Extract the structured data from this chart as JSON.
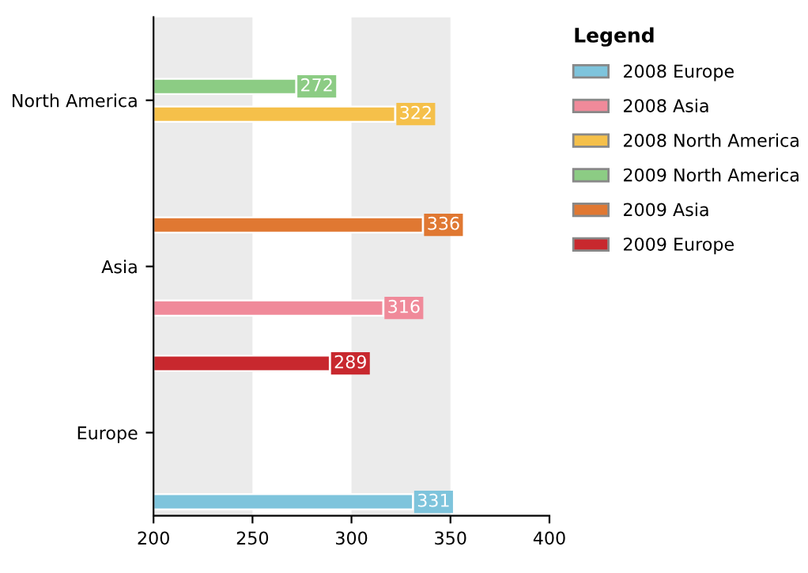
{
  "chart_data": {
    "type": "bar",
    "orientation": "horizontal",
    "categories": [
      "North America",
      "Asia",
      "Europe"
    ],
    "series": [
      {
        "name": "2008 Europe",
        "color": "#7ec4dc",
        "values": [
          null,
          null,
          331
        ]
      },
      {
        "name": "2008 Asia",
        "color": "#f08a9a",
        "values": [
          null,
          316,
          null
        ]
      },
      {
        "name": "2008 North America",
        "color": "#f5c04a",
        "values": [
          322,
          null,
          null
        ]
      },
      {
        "name": "2009 North America",
        "color": "#8ccc84",
        "values": [
          272,
          null,
          null
        ]
      },
      {
        "name": "2009 Asia",
        "color": "#e07832",
        "values": [
          null,
          336,
          null
        ]
      },
      {
        "name": "2009 Europe",
        "color": "#c8282e",
        "values": [
          null,
          null,
          289
        ]
      }
    ],
    "xlim": [
      200,
      400
    ],
    "xticks": [
      200,
      250,
      300,
      350,
      400
    ],
    "bands": [
      {
        "axis": "x",
        "from": 200,
        "to": 250,
        "color": "#ebebeb"
      },
      {
        "axis": "x",
        "from": 300,
        "to": 350,
        "color": "#ebebeb"
      }
    ],
    "legend_title": "Legend",
    "legend": "right",
    "data_labels": true,
    "grid": false
  }
}
